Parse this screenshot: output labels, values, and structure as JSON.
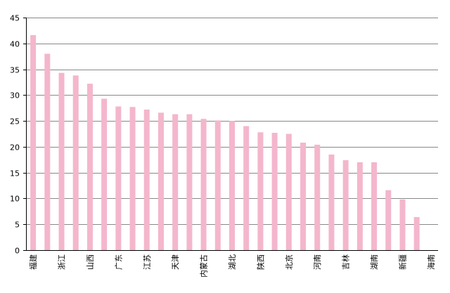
{
  "chart_data": {
    "type": "bar",
    "categories": [
      "福建",
      "",
      "浙江",
      "",
      "山西",
      "",
      "广东",
      "",
      "江苏",
      "",
      "天津",
      "",
      "内蒙古",
      "",
      "湖北",
      "",
      "陕西",
      "",
      "北京",
      "",
      "河南",
      "",
      "吉林",
      "",
      "湖南",
      "",
      "新疆",
      "",
      "海南"
    ],
    "values": [
      41.6,
      38.0,
      34.3,
      33.8,
      32.2,
      29.3,
      27.8,
      27.7,
      27.2,
      26.6,
      26.3,
      26.3,
      25.4,
      25.1,
      25.0,
      24.0,
      22.8,
      22.7,
      22.5,
      20.8,
      20.4,
      18.5,
      17.4,
      17.0,
      17.0,
      11.6,
      9.8,
      6.4,
      0
    ],
    "ylim": [
      0,
      45
    ],
    "yticks": [
      "0",
      "5",
      "10",
      "15",
      "20",
      "25",
      "30",
      "35",
      "40",
      "45"
    ],
    "grid": true,
    "bar_color": "#F4B6CC",
    "grid_color": "#888888",
    "axis_color": "#000000"
  }
}
